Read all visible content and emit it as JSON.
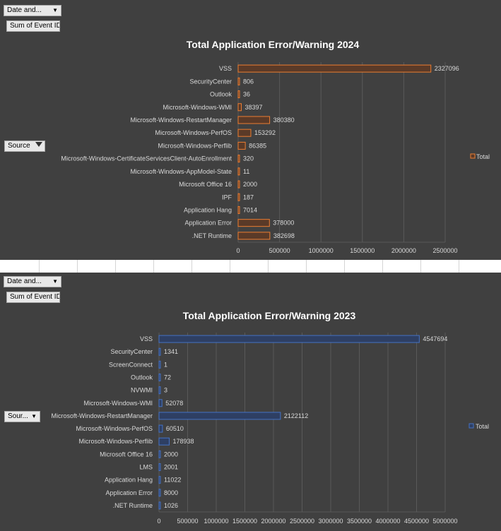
{
  "charts": [
    {
      "filter_button": "Date and...",
      "value_button": "Sum of Event ID",
      "source_button": "Source",
      "legend_label": "Total",
      "colors": {
        "bar_fill": "#5a3a28",
        "bar_stroke": "#ed7d31"
      },
      "chart_data": {
        "type": "bar",
        "orientation": "horizontal",
        "title": "Total Application Error/Warning 2024",
        "categories": [
          "VSS",
          "SecurityCenter",
          "Outlook",
          "Microsoft-Windows-WMI",
          "Microsoft-Windows-RestartManager",
          "Microsoft-Windows-PerfOS",
          "Microsoft-Windows-Perflib",
          "Microsoft-Windows-CertificateServicesClient-AutoEnrollment",
          "Microsoft-Windows-AppModel-State",
          "Microsoft Office 16",
          "IPF",
          "Application Hang",
          "Application Error",
          ".NET Runtime"
        ],
        "values": [
          2327096,
          806,
          36,
          38397,
          380380,
          153292,
          86385,
          320,
          11,
          2000,
          187,
          7014,
          378000,
          382698
        ],
        "xlim": [
          0,
          2500000
        ],
        "xticks": [
          0,
          500000,
          1000000,
          1500000,
          2000000,
          2500000
        ],
        "legend": "right",
        "grid": true
      }
    },
    {
      "filter_button": "Date and...",
      "value_button": "Sum of Event ID",
      "source_button": "Sour...",
      "legend_label": "Total",
      "colors": {
        "bar_fill": "#2e3f63",
        "bar_stroke": "#4472c4"
      },
      "chart_data": {
        "type": "bar",
        "orientation": "horizontal",
        "title": "Total Application Error/Warning 2023",
        "categories": [
          "VSS",
          "SecurityCenter",
          "ScreenConnect",
          "Outlook",
          "NVWMI",
          "Microsoft-Windows-WMI",
          "Microsoft-Windows-RestartManager",
          "Microsoft-Windows-PerfOS",
          "Microsoft-Windows-Perflib",
          "Microsoft Office 16",
          "LMS",
          "Application Hang",
          "Application Error",
          ".NET Runtime"
        ],
        "values": [
          4547694,
          1341,
          1,
          72,
          3,
          52078,
          2122112,
          60510,
          178938,
          2000,
          2001,
          11022,
          8000,
          1026
        ],
        "xlim": [
          0,
          5000000
        ],
        "xticks": [
          0,
          500000,
          1000000,
          1500000,
          2000000,
          2500000,
          3000000,
          3500000,
          4000000,
          4500000,
          5000000
        ],
        "legend": "right",
        "grid": true
      }
    }
  ]
}
